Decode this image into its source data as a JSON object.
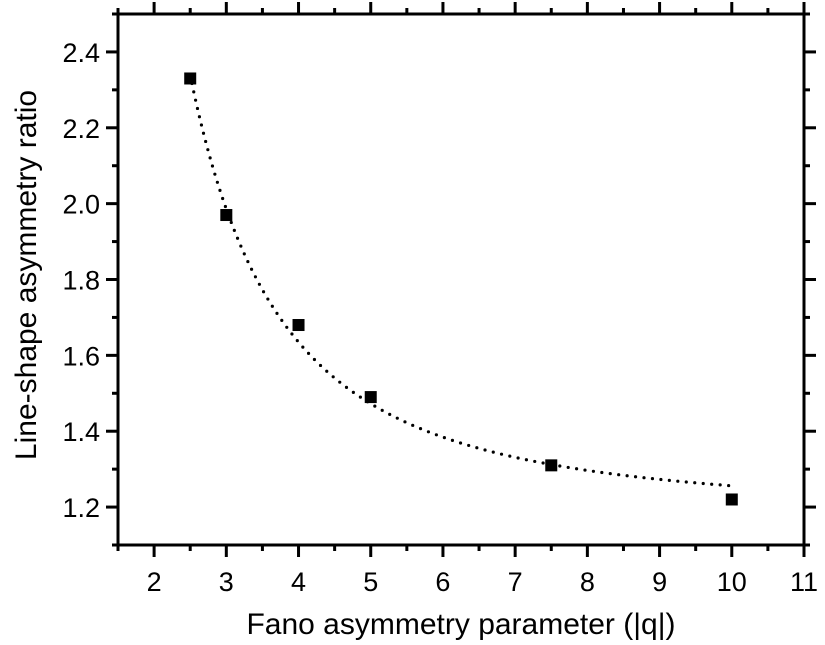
{
  "chart_data": {
    "type": "scatter",
    "title": "",
    "xlabel": "Fano asymmetry parameter (|q|)",
    "ylabel": "Line-shape asymmetry ratio",
    "xlim": [
      1.5,
      11
    ],
    "ylim": [
      1.1,
      2.5
    ],
    "xticks": [
      2,
      3,
      4,
      5,
      6,
      7,
      8,
      9,
      10,
      11
    ],
    "yticks": [
      1.2,
      1.4,
      1.6,
      1.8,
      2.0,
      2.2,
      2.4
    ],
    "xtick_labels": [
      "2",
      "3",
      "4",
      "5",
      "6",
      "7",
      "8",
      "9",
      "10",
      "11"
    ],
    "ytick_labels": [
      "1.2",
      "1.4",
      "1.6",
      "1.8",
      "2.0",
      "2.2",
      "2.4"
    ],
    "grid": false,
    "legend": "none",
    "series": [
      {
        "marker": "square",
        "color": "#000000",
        "x": [
          2.5,
          3,
          4,
          5,
          7.5,
          10
        ],
        "y": [
          2.33,
          1.97,
          1.68,
          1.49,
          1.31,
          1.22
        ]
      }
    ],
    "fit_curve": {
      "style": "dotted",
      "color": "#000000",
      "x_range": [
        2.5,
        10
      ]
    }
  }
}
